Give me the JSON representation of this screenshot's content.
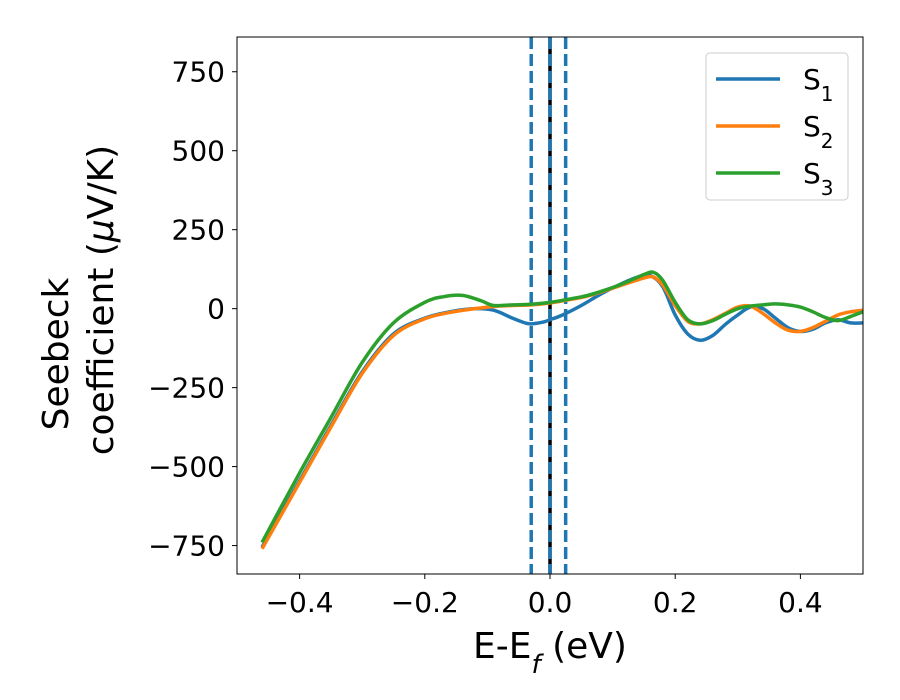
{
  "chart_data": {
    "type": "line",
    "title": "",
    "xlabel": "E-E",
    "xlabel_sub": "f",
    "xlabel_unit": " (eV)",
    "ylabel_line1": "Seebeck",
    "ylabel_line2": "coefficient  (",
    "ylabel_mu": "μ",
    "ylabel_unit": "V/K)",
    "xlim": [
      -0.5,
      0.5
    ],
    "ylim": [
      -840,
      860
    ],
    "xticks": [
      -0.4,
      -0.2,
      0.0,
      0.2,
      0.4
    ],
    "xtick_labels": [
      "−0.4",
      "−0.2",
      "0.0",
      "0.2",
      "0.4"
    ],
    "yticks": [
      750,
      500,
      250,
      0,
      -250,
      -500,
      -750
    ],
    "ytick_labels": [
      "750",
      "500",
      "250",
      "0",
      "−250",
      "−500",
      "−750"
    ],
    "grid": false,
    "legend_position": "top-right",
    "vlines": [
      {
        "x": -0.03,
        "style": "dashed",
        "color": "#1f77b4"
      },
      {
        "x": 0.0,
        "style": "solid",
        "color": "#000000"
      },
      {
        "x": 0.0,
        "style": "dashed",
        "color": "#1f77b4"
      },
      {
        "x": 0.025,
        "style": "dashed",
        "color": "#1f77b4"
      }
    ],
    "series": [
      {
        "name": "S",
        "name_sub": "1",
        "color": "#1f77b4",
        "x": [
          -0.46,
          -0.4,
          -0.35,
          -0.3,
          -0.25,
          -0.2,
          -0.16,
          -0.12,
          -0.09,
          -0.06,
          -0.04,
          -0.03,
          -0.01,
          0.0,
          0.02,
          0.05,
          0.08,
          0.11,
          0.14,
          0.16,
          0.18,
          0.2,
          0.22,
          0.24,
          0.26,
          0.28,
          0.3,
          0.32,
          0.34,
          0.36,
          0.38,
          0.4,
          0.42,
          0.44,
          0.46,
          0.48,
          0.5
        ],
        "y": [
          -755,
          -545,
          -370,
          -200,
          -80,
          -30,
          -10,
          0,
          -5,
          -30,
          -45,
          -48,
          -42,
          -35,
          -20,
          10,
          45,
          75,
          100,
          105,
          70,
          -20,
          -80,
          -100,
          -85,
          -50,
          -20,
          5,
          0,
          -30,
          -60,
          -72,
          -65,
          -45,
          -35,
          -45,
          -45
        ]
      },
      {
        "name": "S",
        "name_sub": "2",
        "color": "#ff7f0e",
        "x": [
          -0.46,
          -0.4,
          -0.35,
          -0.3,
          -0.25,
          -0.2,
          -0.16,
          -0.12,
          -0.09,
          -0.06,
          -0.03,
          0.0,
          0.03,
          0.06,
          0.09,
          0.12,
          0.15,
          0.165,
          0.18,
          0.2,
          0.22,
          0.24,
          0.26,
          0.28,
          0.3,
          0.32,
          0.34,
          0.36,
          0.38,
          0.4,
          0.42,
          0.44,
          0.46,
          0.48,
          0.5
        ],
        "y": [
          -760,
          -550,
          -375,
          -205,
          -85,
          -32,
          -12,
          0,
          7,
          10,
          12,
          18,
          28,
          40,
          58,
          78,
          97,
          100,
          75,
          10,
          -40,
          -48,
          -35,
          -15,
          5,
          8,
          -15,
          -45,
          -68,
          -72,
          -60,
          -40,
          -20,
          -10,
          -5
        ]
      },
      {
        "name": "S",
        "name_sub": "3",
        "color": "#2ca02c",
        "x": [
          -0.46,
          -0.4,
          -0.35,
          -0.3,
          -0.25,
          -0.2,
          -0.17,
          -0.14,
          -0.11,
          -0.09,
          -0.06,
          -0.03,
          0.0,
          0.03,
          0.06,
          0.09,
          0.12,
          0.15,
          0.165,
          0.18,
          0.2,
          0.22,
          0.24,
          0.26,
          0.28,
          0.3,
          0.32,
          0.34,
          0.36,
          0.38,
          0.4,
          0.42,
          0.44,
          0.46,
          0.48,
          0.5
        ],
        "y": [
          -740,
          -520,
          -345,
          -170,
          -45,
          20,
          38,
          42,
          25,
          10,
          12,
          14,
          20,
          30,
          42,
          60,
          82,
          108,
          115,
          90,
          20,
          -35,
          -48,
          -38,
          -18,
          0,
          8,
          12,
          15,
          12,
          5,
          -10,
          -28,
          -38,
          -25,
          -10
        ]
      }
    ]
  }
}
